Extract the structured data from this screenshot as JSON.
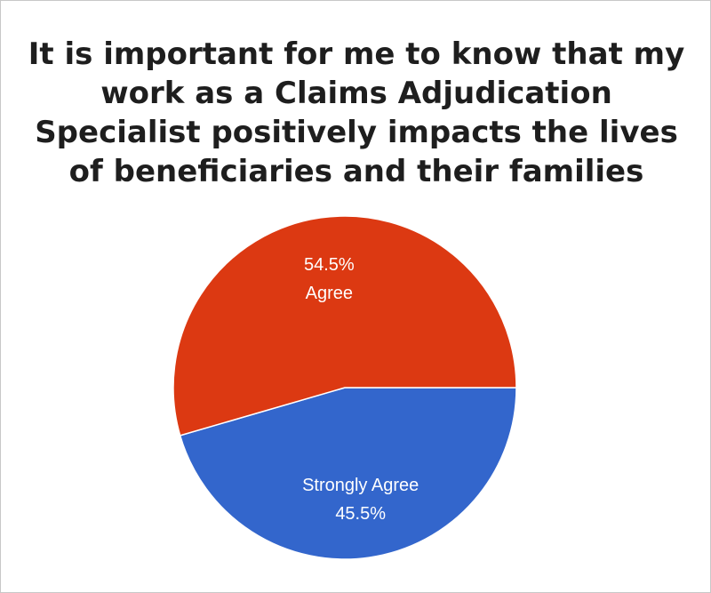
{
  "chart_data": {
    "type": "pie",
    "title_lines": [
      "It is important for me to know that my",
      "work as a Claims Adjudication",
      "Specialist positively impacts the lives",
      "of beneficiaries and their families"
    ],
    "slices": [
      {
        "label": "Strongly Agree",
        "value": 45.5,
        "percent_label": "45.5%",
        "color": "#3366cc"
      },
      {
        "label": "Agree",
        "value": 54.5,
        "percent_label": "54.5%",
        "color": "#dc3912"
      }
    ]
  }
}
